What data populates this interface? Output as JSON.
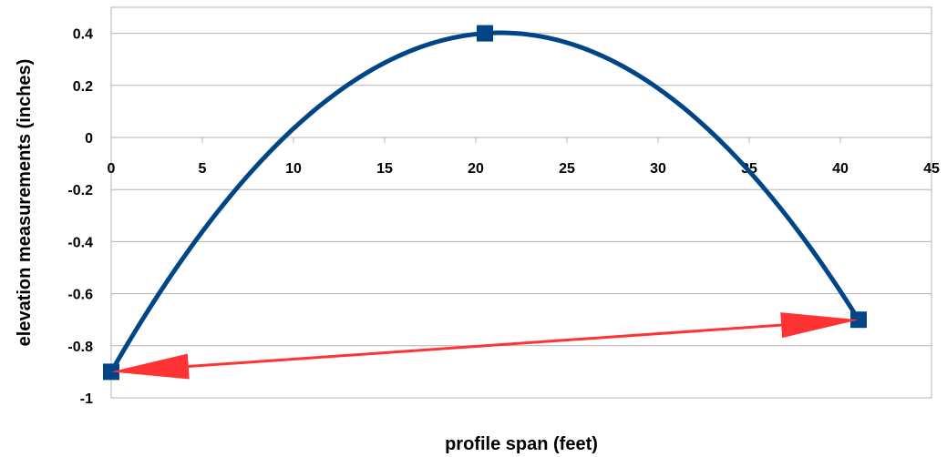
{
  "chart_data": {
    "type": "line",
    "title": "",
    "xlabel": "profile span (feet)",
    "ylabel": "elevation measurements (inches)",
    "xlim": [
      0,
      45
    ],
    "ylim": [
      -1,
      0.5
    ],
    "x_ticks": [
      "0",
      "5",
      "10",
      "15",
      "20",
      "25",
      "30",
      "35",
      "40",
      "45"
    ],
    "y_ticks": [
      "0.4",
      "0.2",
      "0",
      "-0.2",
      "-0.4",
      "-0.6",
      "-0.8",
      "-1"
    ],
    "grid": true,
    "legend": "none",
    "series": [
      {
        "color": "#004586",
        "smooth": true,
        "points": [
          {
            "x": 0,
            "y": -0.9
          },
          {
            "x": 20.5,
            "y": 0.4
          },
          {
            "x": 41,
            "y": -0.7
          }
        ]
      }
    ],
    "annotations": [
      {
        "type": "double-arrow",
        "color": "#ff3333",
        "from": {
          "x": 0,
          "y": -0.9
        },
        "to": {
          "x": 41,
          "y": -0.7
        }
      }
    ]
  }
}
